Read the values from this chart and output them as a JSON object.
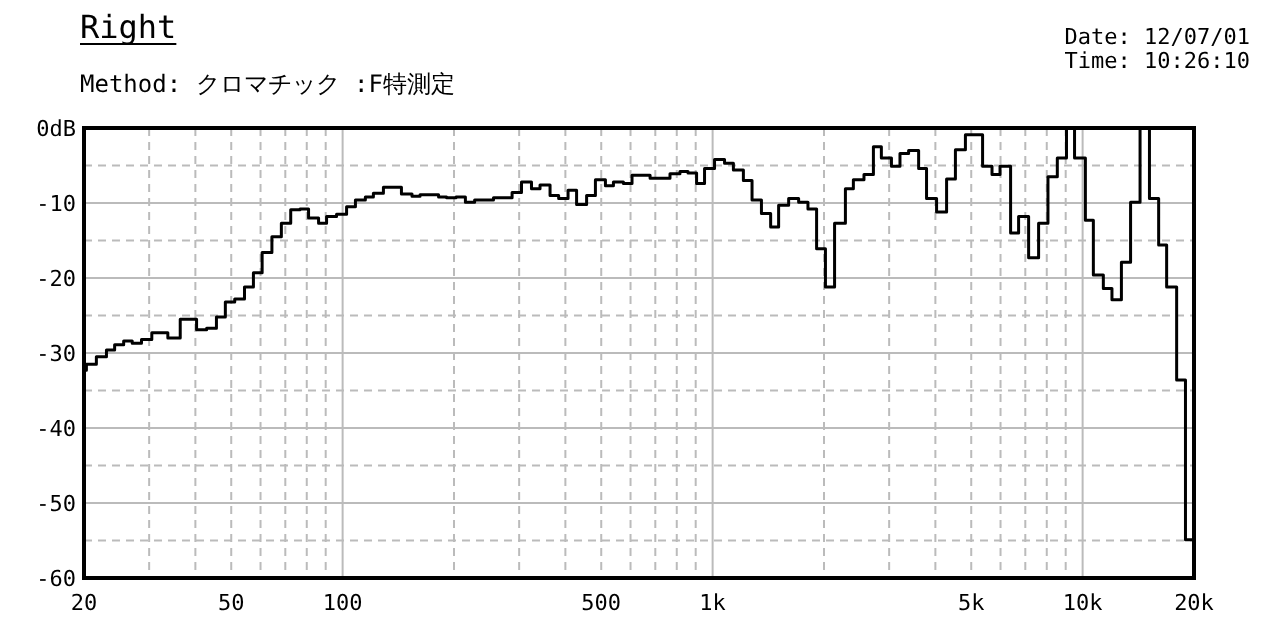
{
  "chart_data": {
    "type": "step",
    "title": "Right",
    "subtitle": "Method:  クロマチック  :F特測定",
    "annotations": [
      "Date: 12/07/01",
      "Time: 10:26:10"
    ],
    "x": [
      20,
      20.3,
      21.6,
      23.0,
      24.2,
      25.6,
      27.0,
      28.6,
      30.5,
      33.7,
      36.4,
      40.3,
      42.9,
      45.6,
      48.2,
      51.1,
      54.3,
      57.4,
      60.6,
      64.4,
      68.3,
      72.4,
      76.7,
      80.9,
      86.1,
      90.5,
      96.3,
      102.5,
      108.3,
      115.2,
      121.1,
      128.9,
      144.2,
      154,
      161.9,
      181.7,
      191,
      202.5,
      214.7,
      227.4,
      255.7,
      287.1,
      304.4,
      323.9,
      341.6,
      363.6,
      383.6,
      406.7,
      428.9,
      456.5,
      482.2,
      513.2,
      539.4,
      574,
      605.6,
      677.6,
      767,
      816,
      858,
      905,
      951,
      1012,
      1077,
      1138,
      1211,
      1278,
      1355,
      1435,
      1508,
      1605,
      1708,
      1810,
      1910,
      2018,
      2136,
      2285,
      2401,
      2565,
      2720,
      2858,
      3043,
      3209,
      3386,
      3604,
      3786,
      4030,
      4289,
      4531,
      4822,
      5366,
      5690,
      5981,
      6388,
      6714,
      7146,
      7604,
      8060,
      8543,
      9045,
      9510,
      10173,
      10691,
      11376,
      12003,
      12730,
      13478,
      14297,
      15158,
      16051,
      16869,
      17953,
      18966,
      20000
    ],
    "values": [
      -32.3,
      -31.5,
      -30.5,
      -29.6,
      -28.9,
      -28.4,
      -28.7,
      -28.2,
      -27.3,
      -28.0,
      -25.5,
      -26.9,
      -26.7,
      -25.2,
      -23.2,
      -22.8,
      -21.2,
      -19.3,
      -16.6,
      -14.5,
      -12.7,
      -10.9,
      -10.8,
      -12.0,
      -12.7,
      -11.8,
      -11.5,
      -10.5,
      -9.6,
      -9.2,
      -8.7,
      -7.9,
      -8.8,
      -9.1,
      -8.9,
      -9.2,
      -9.3,
      -9.2,
      -9.9,
      -9.6,
      -9.3,
      -8.6,
      -7.2,
      -8.1,
      -7.6,
      -9.0,
      -9.4,
      -8.3,
      -10.2,
      -9.0,
      -6.9,
      -7.7,
      -7.2,
      -7.4,
      -6.3,
      -6.7,
      -6.1,
      -5.8,
      -6.0,
      -7.4,
      -5.4,
      -4.2,
      -4.7,
      -5.6,
      -7.0,
      -9.6,
      -11.4,
      -13.2,
      -10.3,
      -9.4,
      -9.9,
      -10.8,
      -16.1,
      -21.2,
      -12.7,
      -8.1,
      -6.9,
      -6.2,
      -2.5,
      -4.0,
      -5.1,
      -3.4,
      -3.0,
      -5.4,
      -9.4,
      -11.2,
      -6.8,
      -2.9,
      -0.9,
      -5.1,
      -6.2,
      -5.1,
      -14.0,
      -11.8,
      -17.3,
      -12.7,
      -6.5,
      -4.0,
      0,
      -4.0,
      -12.3,
      -19.6,
      -21.4,
      -22.9,
      -17.9,
      -9.9,
      0,
      -9.4,
      -15.6,
      -21.2,
      -33.6,
      -54.9,
      -54.9
    ],
    "color": "#000000",
    "log": "x",
    "grid": true,
    "xlim": [
      20,
      20000
    ],
    "ylim": [
      -60,
      0
    ],
    "xticks": [
      20,
      {
        "value": 30,
        "label": null
      },
      {
        "value": 40,
        "label": null
      },
      50,
      {
        "value": 60,
        "label": null
      },
      {
        "value": 70,
        "label": null
      },
      {
        "value": 80,
        "label": null
      },
      {
        "value": 90,
        "label": null
      },
      100,
      {
        "value": 200,
        "label": null
      },
      {
        "value": 300,
        "label": null
      },
      {
        "value": 400,
        "label": null
      },
      500,
      {
        "value": 600,
        "label": null
      },
      {
        "value": 700,
        "label": null
      },
      {
        "value": 800,
        "label": null
      },
      {
        "value": 900,
        "label": null
      },
      {
        "value": 1000,
        "label": "1k"
      },
      {
        "value": 2000,
        "label": null
      },
      {
        "value": 3000,
        "label": null
      },
      {
        "value": 4000,
        "label": null
      },
      {
        "value": 5000,
        "label": "5k"
      },
      {
        "value": 6000,
        "label": null
      },
      {
        "value": 7000,
        "label": null
      },
      {
        "value": 8000,
        "label": null
      },
      {
        "value": 9000,
        "label": null
      },
      {
        "value": 10000,
        "label": "10k"
      },
      {
        "value": 20000,
        "label": "20k"
      }
    ],
    "yticks": [
      {
        "value": 0,
        "label": "0dB"
      },
      {
        "value": -5,
        "label": null
      },
      -10,
      {
        "value": -15,
        "label": null
      },
      -20,
      {
        "value": -25,
        "label": null
      },
      -30,
      {
        "value": -35,
        "label": null
      },
      -40,
      {
        "value": -45,
        "label": null
      },
      -50,
      {
        "value": -55,
        "label": null
      },
      -60
    ]
  }
}
